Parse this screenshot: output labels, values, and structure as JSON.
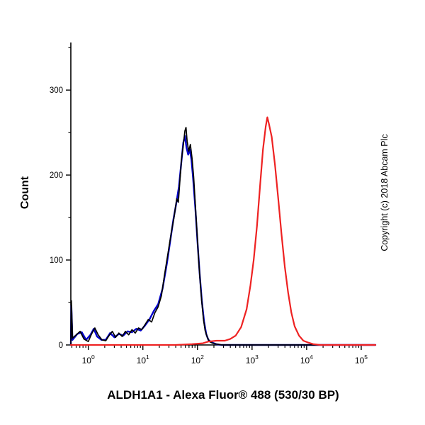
{
  "chart_data": {
    "type": "line",
    "title": "",
    "xlabel": "ALDH1A1 - Alexa Fluor® 488 (530/30 BP)",
    "ylabel": "Count",
    "annotation": "Copyright (c) 2018 Abcam Plc",
    "x_scale": "log10",
    "xlim_log": [
      -0.32,
      5.26
    ],
    "ylim": [
      0,
      356
    ],
    "tick_base": "10",
    "xticks_exponents": [
      0,
      1,
      2,
      3,
      4,
      5
    ],
    "yticks": [
      0,
      100,
      200,
      300
    ],
    "y_minor_step": 50,
    "grid": false,
    "legend": "none",
    "axis_color": "#000000",
    "series": [
      {
        "name": "blue-curve",
        "color": "#0000cc",
        "width": 2.4,
        "points": [
          [
            -0.32,
            0
          ],
          [
            -0.315,
            24
          ],
          [
            -0.31,
            46
          ],
          [
            -0.3,
            26
          ],
          [
            -0.29,
            6
          ],
          [
            -0.2,
            13
          ],
          [
            -0.12,
            15
          ],
          [
            -0.04,
            6
          ],
          [
            0.04,
            12
          ],
          [
            0.1,
            19
          ],
          [
            0.16,
            10
          ],
          [
            0.24,
            6
          ],
          [
            0.32,
            6
          ],
          [
            0.4,
            14
          ],
          [
            0.48,
            9
          ],
          [
            0.56,
            13
          ],
          [
            0.64,
            11
          ],
          [
            0.72,
            16
          ],
          [
            0.8,
            15
          ],
          [
            0.88,
            19
          ],
          [
            0.96,
            17
          ],
          [
            1.04,
            23
          ],
          [
            1.12,
            30
          ],
          [
            1.2,
            40
          ],
          [
            1.28,
            48
          ],
          [
            1.36,
            66
          ],
          [
            1.44,
            96
          ],
          [
            1.5,
            122
          ],
          [
            1.56,
            148
          ],
          [
            1.61,
            166
          ],
          [
            1.66,
            186
          ],
          [
            1.7,
            212
          ],
          [
            1.74,
            238
          ],
          [
            1.77,
            246
          ],
          [
            1.8,
            232
          ],
          [
            1.83,
            224
          ],
          [
            1.86,
            230
          ],
          [
            1.89,
            218
          ],
          [
            1.92,
            196
          ],
          [
            1.96,
            162
          ],
          [
            2.0,
            122
          ],
          [
            2.04,
            84
          ],
          [
            2.08,
            52
          ],
          [
            2.12,
            28
          ],
          [
            2.16,
            13
          ],
          [
            2.2,
            6
          ],
          [
            2.26,
            3
          ],
          [
            2.34,
            1
          ],
          [
            2.44,
            0
          ],
          [
            5.26,
            0
          ]
        ]
      },
      {
        "name": "black-curve",
        "color": "#000000",
        "width": 1.7,
        "points": [
          [
            -0.32,
            0
          ],
          [
            -0.315,
            30
          ],
          [
            -0.31,
            52
          ],
          [
            -0.3,
            30
          ],
          [
            -0.29,
            8
          ],
          [
            -0.22,
            12
          ],
          [
            -0.15,
            16
          ],
          [
            -0.08,
            7
          ],
          [
            0.0,
            4
          ],
          [
            0.06,
            13
          ],
          [
            0.12,
            20
          ],
          [
            0.18,
            12
          ],
          [
            0.25,
            6
          ],
          [
            0.32,
            5
          ],
          [
            0.38,
            11
          ],
          [
            0.44,
            16
          ],
          [
            0.5,
            9
          ],
          [
            0.56,
            14
          ],
          [
            0.62,
            10
          ],
          [
            0.68,
            16
          ],
          [
            0.74,
            12
          ],
          [
            0.8,
            18
          ],
          [
            0.86,
            14
          ],
          [
            0.92,
            20
          ],
          [
            0.98,
            18
          ],
          [
            1.04,
            24
          ],
          [
            1.1,
            30
          ],
          [
            1.16,
            27
          ],
          [
            1.22,
            38
          ],
          [
            1.28,
            45
          ],
          [
            1.34,
            58
          ],
          [
            1.4,
            84
          ],
          [
            1.46,
            108
          ],
          [
            1.52,
            132
          ],
          [
            1.57,
            150
          ],
          [
            1.62,
            172
          ],
          [
            1.65,
            168
          ],
          [
            1.68,
            195
          ],
          [
            1.71,
            220
          ],
          [
            1.74,
            235
          ],
          [
            1.77,
            252
          ],
          [
            1.79,
            256
          ],
          [
            1.81,
            240
          ],
          [
            1.84,
            228
          ],
          [
            1.87,
            236
          ],
          [
            1.9,
            220
          ],
          [
            1.93,
            198
          ],
          [
            1.96,
            166
          ],
          [
            1.99,
            134
          ],
          [
            2.02,
            102
          ],
          [
            2.05,
            74
          ],
          [
            2.08,
            50
          ],
          [
            2.11,
            30
          ],
          [
            2.14,
            17
          ],
          [
            2.18,
            9
          ],
          [
            2.22,
            4
          ],
          [
            2.28,
            2
          ],
          [
            2.35,
            1
          ],
          [
            2.45,
            0
          ],
          [
            5.26,
            0
          ]
        ]
      },
      {
        "name": "red-curve",
        "color": "#ee2222",
        "width": 2.2,
        "points": [
          [
            -0.32,
            0
          ],
          [
            1.6,
            0
          ],
          [
            1.9,
            1
          ],
          [
            2.1,
            2
          ],
          [
            2.2,
            4
          ],
          [
            2.35,
            5
          ],
          [
            2.5,
            5
          ],
          [
            2.6,
            7
          ],
          [
            2.7,
            11
          ],
          [
            2.8,
            21
          ],
          [
            2.9,
            42
          ],
          [
            2.97,
            70
          ],
          [
            3.03,
            100
          ],
          [
            3.09,
            140
          ],
          [
            3.15,
            190
          ],
          [
            3.2,
            230
          ],
          [
            3.25,
            257
          ],
          [
            3.28,
            268
          ],
          [
            3.31,
            260
          ],
          [
            3.36,
            245
          ],
          [
            3.42,
            212
          ],
          [
            3.48,
            172
          ],
          [
            3.54,
            130
          ],
          [
            3.6,
            92
          ],
          [
            3.66,
            62
          ],
          [
            3.72,
            38
          ],
          [
            3.78,
            22
          ],
          [
            3.86,
            11
          ],
          [
            3.94,
            5
          ],
          [
            4.02,
            3
          ],
          [
            4.12,
            1
          ],
          [
            4.25,
            0
          ],
          [
            5.26,
            0
          ]
        ]
      }
    ]
  }
}
